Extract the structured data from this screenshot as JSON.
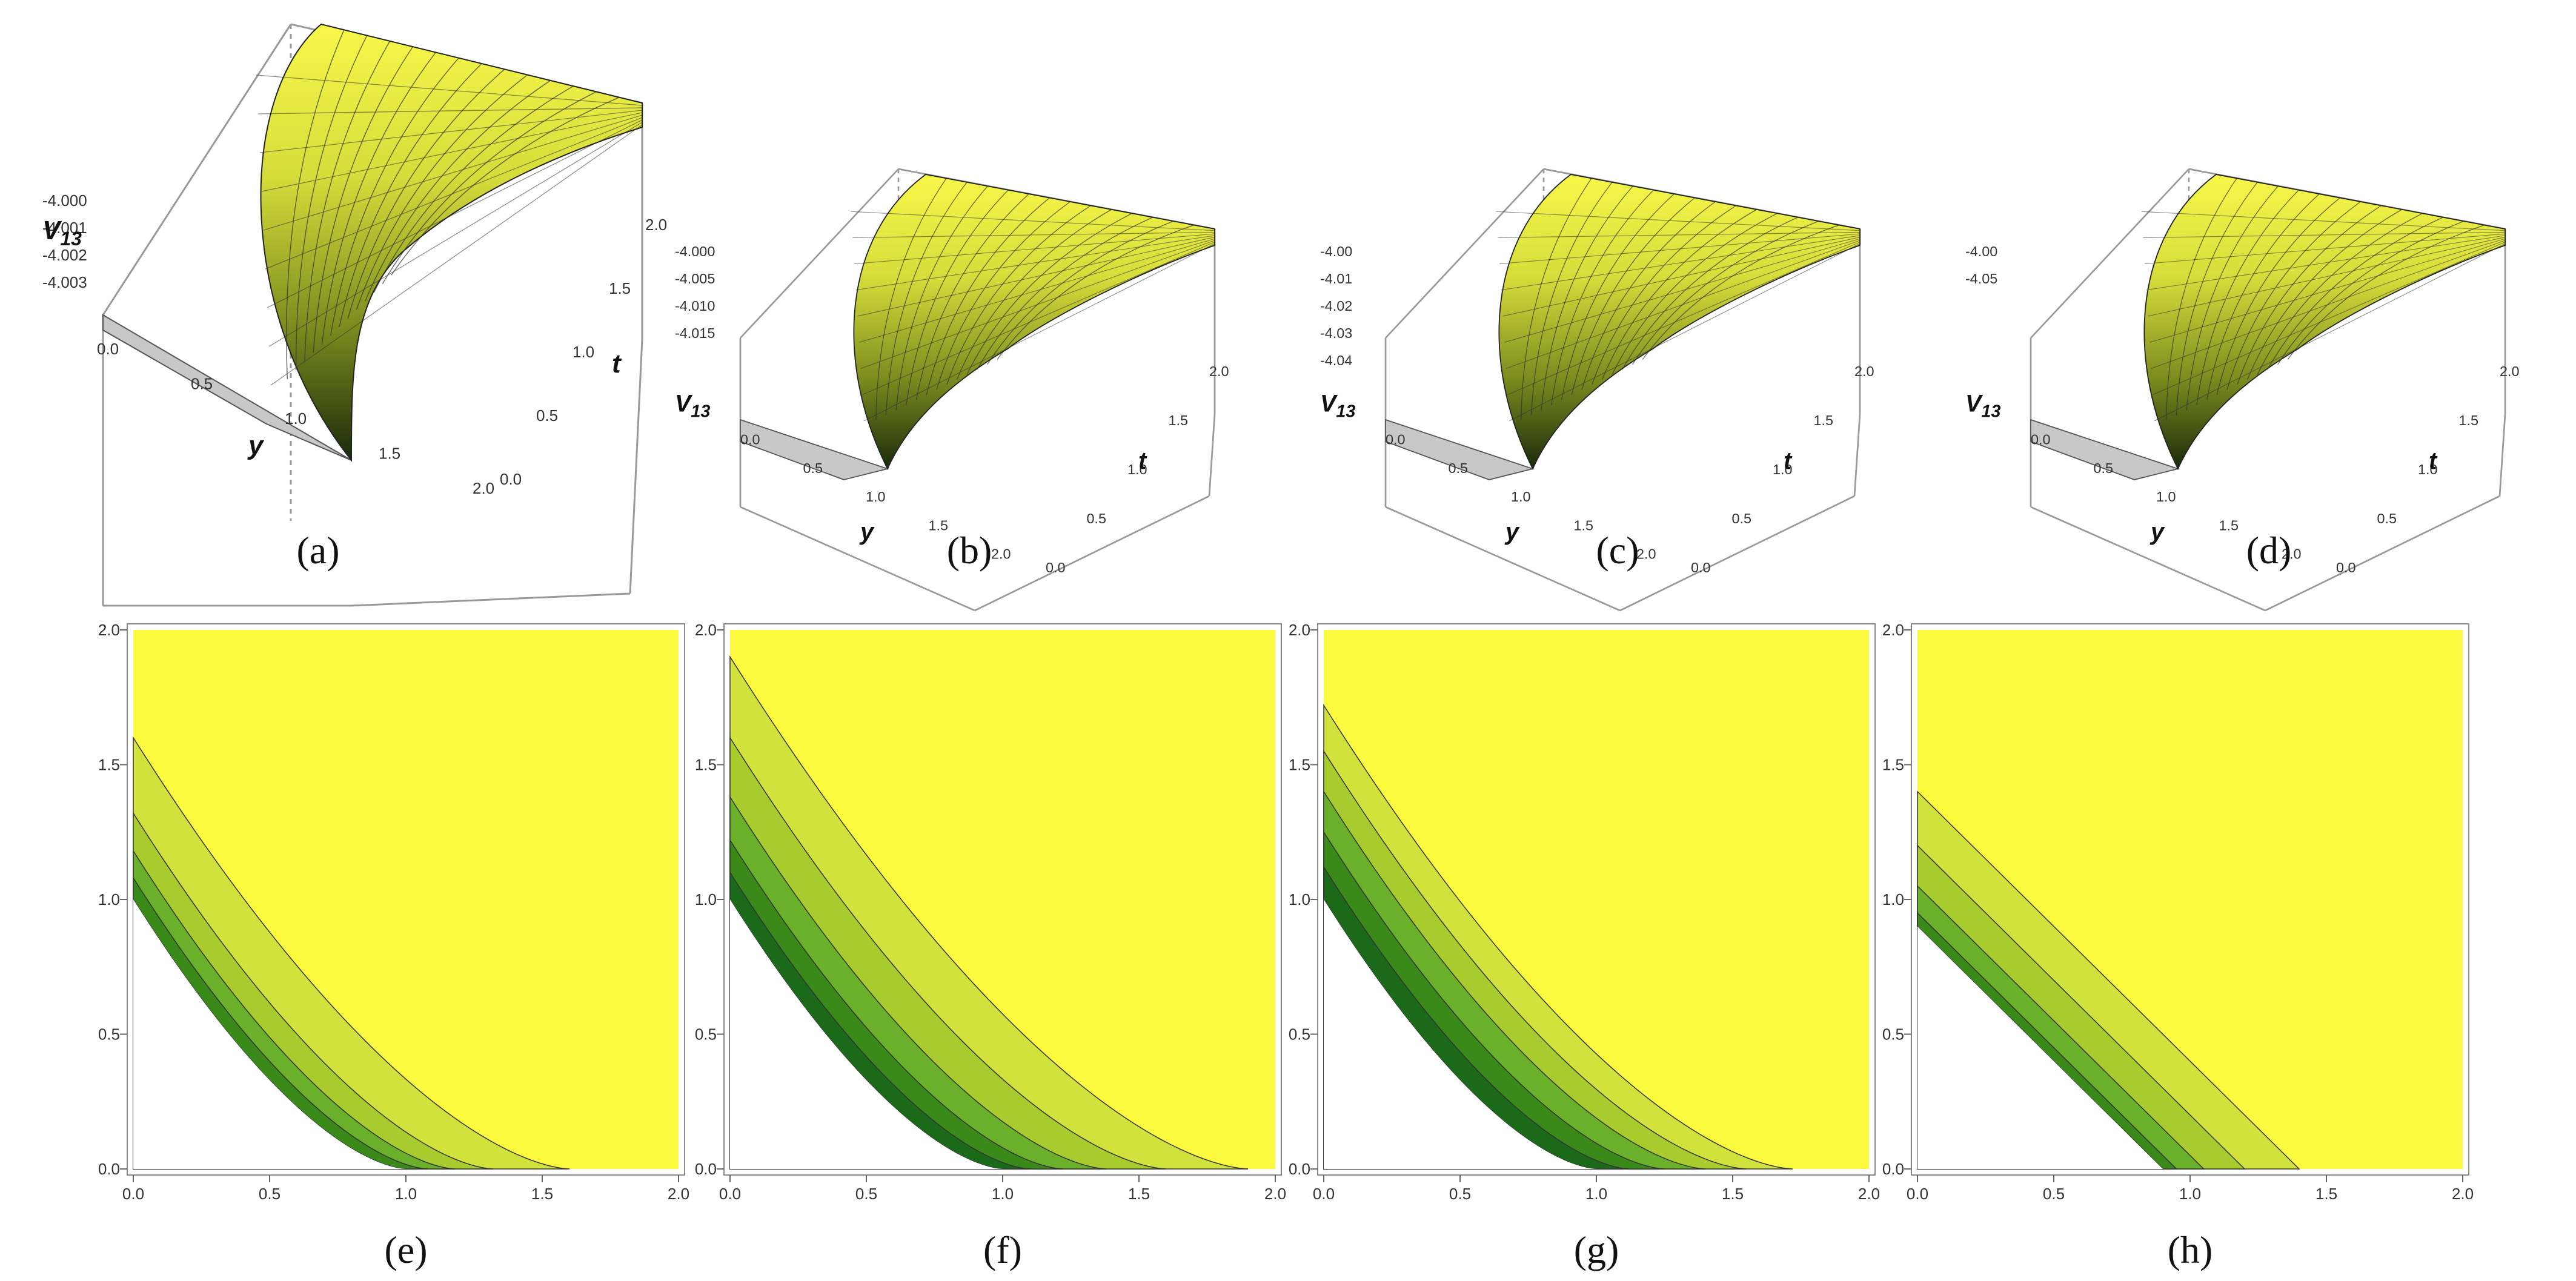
{
  "figure": {
    "panels_3d": [
      {
        "caption": "(a)",
        "zlabel": "V",
        "zlabel_sub": "13",
        "zticks": [
          "-4.000",
          "-4.001",
          "-4.002",
          "-4.003"
        ],
        "yticks": [
          "0.0",
          "0.5",
          "1.0",
          "1.5",
          "2.0"
        ],
        "tticks": [
          "0.0",
          "0.5",
          "1.0",
          "1.5",
          "2.0"
        ],
        "xlabel": "y",
        "tlabel": "t"
      },
      {
        "caption": "(b)",
        "zlabel": "V",
        "zlabel_sub": "13",
        "zticks": [
          "-4.000",
          "-4.005",
          "-4.010",
          "-4.015"
        ],
        "yticks": [
          "0.0",
          "0.5",
          "1.0",
          "1.5",
          "2.0"
        ],
        "tticks": [
          "0.0",
          "0.5",
          "1.0",
          "1.5",
          "2.0"
        ],
        "xlabel": "y",
        "tlabel": "t"
      },
      {
        "caption": "(c)",
        "zlabel": "V",
        "zlabel_sub": "13",
        "zticks": [
          "-4.00",
          "-4.01",
          "-4.02",
          "-4.03",
          "-4.04"
        ],
        "yticks": [
          "0.0",
          "0.5",
          "1.0",
          "1.5",
          "2.0"
        ],
        "tticks": [
          "0.0",
          "0.5",
          "1.0",
          "1.5",
          "2.0"
        ],
        "xlabel": "y",
        "tlabel": "t"
      },
      {
        "caption": "(d)",
        "zlabel": "V",
        "zlabel_sub": "13",
        "zticks": [
          "-4.00",
          "-4.05"
        ],
        "yticks": [
          "0.0",
          "0.5",
          "1.0",
          "1.5",
          "2.0"
        ],
        "tticks": [
          "0.0",
          "0.5",
          "1.0",
          "1.5",
          "2.0"
        ],
        "xlabel": "y",
        "tlabel": "t"
      }
    ],
    "panels_contour": [
      {
        "caption": "(e)"
      },
      {
        "caption": "(f)"
      },
      {
        "caption": "(g)"
      },
      {
        "caption": "(h)"
      }
    ]
  },
  "colors": {
    "surface_high": "#f8f84a",
    "surface_low": "#1a2a0a",
    "floor": "#c8c8c8",
    "contour_bands": [
      "#000000",
      "#0a3a0a",
      "#1a6a1a",
      "#3a8a1a",
      "#6ab02a",
      "#a8cc2e",
      "#d2e23c",
      "#fbfa3e"
    ]
  },
  "chart_data": [
    {
      "type": "surface3d",
      "caption": "(a)",
      "xlabel": "y",
      "ylabel": "t",
      "zlabel": "V13",
      "xlim": [
        0,
        2
      ],
      "ylim": [
        0,
        2
      ],
      "zticks": [
        -4.0,
        -4.001,
        -4.002,
        -4.003
      ]
    },
    {
      "type": "surface3d",
      "caption": "(b)",
      "xlabel": "y",
      "ylabel": "t",
      "zlabel": "V13",
      "xlim": [
        0,
        2
      ],
      "ylim": [
        0,
        2
      ],
      "zticks": [
        -4.0,
        -4.005,
        -4.01,
        -4.015
      ]
    },
    {
      "type": "surface3d",
      "caption": "(c)",
      "xlabel": "y",
      "ylabel": "t",
      "zlabel": "V13",
      "xlim": [
        0,
        2
      ],
      "ylim": [
        0,
        2
      ],
      "zticks": [
        -4.0,
        -4.01,
        -4.02,
        -4.03,
        -4.04
      ]
    },
    {
      "type": "surface3d",
      "caption": "(d)",
      "xlabel": "y",
      "ylabel": "t",
      "zlabel": "V13",
      "xlim": [
        0,
        2
      ],
      "ylim": [
        0,
        2
      ],
      "zticks": [
        -4.0,
        -4.05
      ]
    },
    {
      "type": "contour",
      "caption": "(e)",
      "xlim": [
        0,
        2
      ],
      "ylim": [
        0,
        2
      ],
      "xticks": [
        0.0,
        0.5,
        1.0,
        1.5,
        2.0
      ],
      "yticks": [
        0.0,
        0.5,
        1.0,
        1.5,
        2.0
      ],
      "tick_labels": [
        "0.0",
        "0.5",
        "1.0",
        "1.5",
        "2.0"
      ],
      "boundary_curves": [
        [
          1.0,
          0.0
        ],
        [
          1.15,
          0.0
        ],
        [
          1.3,
          0.0
        ],
        [
          1.5,
          0.0
        ],
        [
          2.0,
          0.0
        ]
      ],
      "hyperbolic_k": [
        1.0,
        1.08,
        1.18,
        1.32,
        1.6
      ]
    },
    {
      "type": "contour",
      "caption": "(f)",
      "xlim": [
        0,
        2
      ],
      "ylim": [
        0,
        2
      ],
      "xticks": [
        0.0,
        0.5,
        1.0,
        1.5,
        2.0
      ],
      "yticks": [
        0.0,
        0.5,
        1.0,
        1.5,
        2.0
      ],
      "tick_labels": [
        "0.0",
        "0.5",
        "1.0",
        "1.5",
        "2.0"
      ],
      "hyperbolic_k": [
        1.0,
        1.1,
        1.22,
        1.38,
        1.6,
        1.9
      ]
    },
    {
      "type": "contour",
      "caption": "(g)",
      "xlim": [
        0,
        2
      ],
      "ylim": [
        0,
        2
      ],
      "xticks": [
        0.0,
        0.5,
        1.0,
        1.5,
        2.0
      ],
      "yticks": [
        0.0,
        0.5,
        1.0,
        1.5,
        2.0
      ],
      "tick_labels": [
        "0.0",
        "0.5",
        "1.0",
        "1.5",
        "2.0"
      ],
      "hyperbolic_k": [
        1.0,
        1.12,
        1.25,
        1.4,
        1.55,
        1.72
      ]
    },
    {
      "type": "contour",
      "caption": "(h)",
      "xlim": [
        0,
        2
      ],
      "ylim": [
        0,
        2
      ],
      "xticks": [
        0.0,
        0.5,
        1.0,
        1.5,
        2.0
      ],
      "yticks": [
        0.0,
        0.5,
        1.0,
        1.5,
        2.0
      ],
      "tick_labels": [
        "0.0",
        "0.5",
        "1.0",
        "1.5",
        "2.0"
      ],
      "linear_c": [
        0.9,
        0.95,
        1.05,
        1.2,
        1.4
      ]
    }
  ]
}
